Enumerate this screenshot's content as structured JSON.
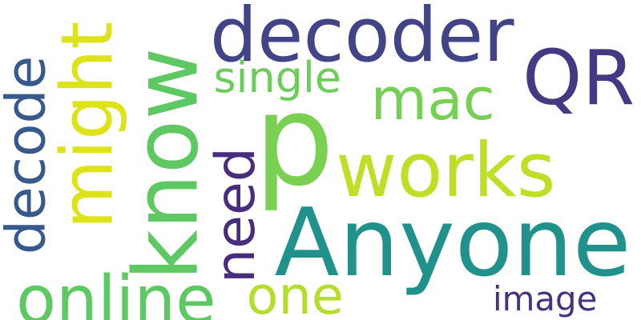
{
  "words": [
    {
      "id": "p",
      "text": "p",
      "color": "#7ad151",
      "rotated": false
    },
    {
      "id": "anyone",
      "text": "Anyone",
      "color": "#21918c",
      "rotated": false
    },
    {
      "id": "qr",
      "text": "QR",
      "color": "#443983",
      "rotated": false
    },
    {
      "id": "decoder",
      "text": "decoder",
      "color": "#414487",
      "rotated": false
    },
    {
      "id": "know",
      "text": "know",
      "color": "#5ec962",
      "rotated": true
    },
    {
      "id": "works",
      "text": "works",
      "color": "#bddf26",
      "rotated": false
    },
    {
      "id": "might",
      "text": "might",
      "color": "#dde318",
      "rotated": true
    },
    {
      "id": "decode",
      "text": "decode",
      "color": "#38598c",
      "rotated": true
    },
    {
      "id": "mac",
      "text": "mac",
      "color": "#75d054",
      "rotated": false
    },
    {
      "id": "need",
      "text": "need",
      "color": "#472d7b",
      "rotated": true
    },
    {
      "id": "online",
      "text": "online",
      "color": "#5ec962",
      "rotated": false
    },
    {
      "id": "one",
      "text": "one",
      "color": "#b5de2b",
      "rotated": false
    },
    {
      "id": "single",
      "text": "single",
      "color": "#6ccd5a",
      "rotated": false
    },
    {
      "id": "image",
      "text": "image",
      "color": "#46327e",
      "rotated": false
    }
  ]
}
